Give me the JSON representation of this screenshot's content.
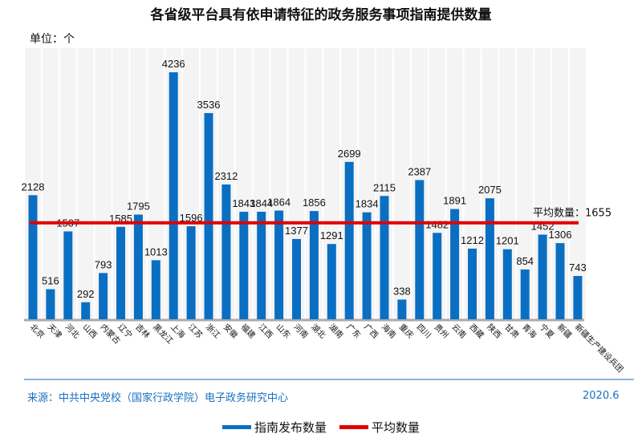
{
  "chart_data": {
    "type": "bar",
    "title": "各省级平台具有依申请特征的政务服务事项指南提供数量",
    "unit_label": "单位：个",
    "categories": [
      "北京",
      "天津",
      "河北",
      "山西",
      "内蒙古",
      "辽宁",
      "吉林",
      "黑龙江",
      "上海",
      "江苏",
      "浙江",
      "安徽",
      "福建",
      "江西",
      "山东",
      "河南",
      "湖北",
      "湖南",
      "广东",
      "广西",
      "海南",
      "重庆",
      "四川",
      "贵州",
      "云南",
      "西藏",
      "陕西",
      "甘肃",
      "青海",
      "宁夏",
      "新疆",
      "新疆生产建设兵团"
    ],
    "series": [
      {
        "name": "指南发布数量",
        "color": "#0a6fc2",
        "values": [
          2128,
          516,
          1507,
          292,
          793,
          1585,
          1795,
          1013,
          4236,
          1596,
          3536,
          2312,
          1843,
          1844,
          1864,
          1377,
          1856,
          1291,
          2699,
          1834,
          2115,
          338,
          2387,
          1482,
          1891,
          1212,
          2075,
          1201,
          854,
          1452,
          1306,
          743
        ]
      },
      {
        "name": "平均数量",
        "color": "#e00000",
        "type": "hline",
        "value": 1655
      }
    ],
    "average_label": "平均数量：1655",
    "ylim": [
      0,
      4650
    ],
    "grid": false,
    "legend": "bottom"
  },
  "footer": {
    "source": "来源：中共中央党校（国家行政学院）电子政务研究中心",
    "date": "2020.6"
  }
}
